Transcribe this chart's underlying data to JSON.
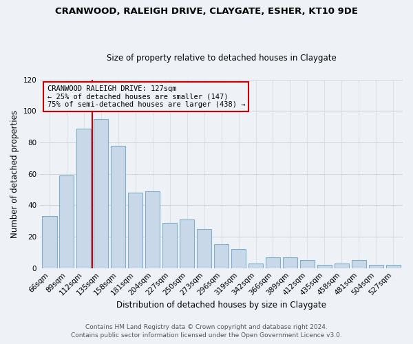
{
  "title": "CRANWOOD, RALEIGH DRIVE, CLAYGATE, ESHER, KT10 9DE",
  "subtitle": "Size of property relative to detached houses in Claygate",
  "xlabel": "Distribution of detached houses by size in Claygate",
  "ylabel": "Number of detached properties",
  "bar_color": "#c8d8e8",
  "bar_edge_color": "#7faec8",
  "categories": [
    "66sqm",
    "89sqm",
    "112sqm",
    "135sqm",
    "158sqm",
    "181sqm",
    "204sqm",
    "227sqm",
    "250sqm",
    "273sqm",
    "296sqm",
    "319sqm",
    "342sqm",
    "366sqm",
    "389sqm",
    "412sqm",
    "435sqm",
    "458sqm",
    "481sqm",
    "504sqm",
    "527sqm"
  ],
  "values": [
    33,
    59,
    89,
    95,
    78,
    48,
    49,
    29,
    31,
    25,
    15,
    12,
    3,
    7,
    7,
    5,
    2,
    3,
    5,
    2,
    2
  ],
  "ylim": [
    0,
    120
  ],
  "yticks": [
    0,
    20,
    40,
    60,
    80,
    100,
    120
  ],
  "marker_label": "CRANWOOD RALEIGH DRIVE: 127sqm",
  "annotation_line1": "← 25% of detached houses are smaller (147)",
  "annotation_line2": "75% of semi-detached houses are larger (438) →",
  "marker_color": "#cc0000",
  "annotation_box_edge": "#cc0000",
  "footer_line1": "Contains HM Land Registry data © Crown copyright and database right 2024.",
  "footer_line2": "Contains public sector information licensed under the Open Government Licence v3.0.",
  "background_color": "#eef2f7",
  "grid_color": "#d0d8e4",
  "title_fontsize": 9.5,
  "subtitle_fontsize": 8.5,
  "axis_label_fontsize": 8.5,
  "tick_fontsize": 7.5,
  "footer_fontsize": 6.5
}
